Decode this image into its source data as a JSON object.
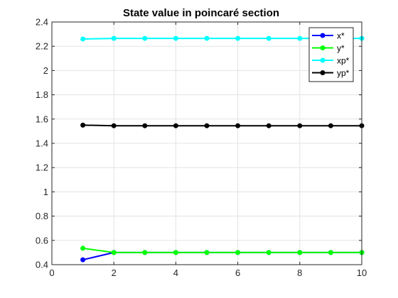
{
  "chart_data": {
    "type": "line",
    "title": "State value in poincaré section",
    "xlabel": "",
    "ylabel": "",
    "xlim": [
      0,
      10
    ],
    "ylim": [
      0.4,
      2.4
    ],
    "grid": true,
    "x_ticks": [
      "0",
      "2",
      "4",
      "6",
      "8",
      "10"
    ],
    "y_ticks": [
      "0.4",
      "0.6",
      "0.8",
      "1",
      "1.2",
      "1.4",
      "1.6",
      "1.8",
      "2",
      "2.2",
      "2.4"
    ],
    "legend_position": "top-right",
    "x": [
      1,
      2,
      3,
      4,
      5,
      6,
      7,
      8,
      9,
      10
    ],
    "series": [
      {
        "name": "x*",
        "color": "#0000ff",
        "values": [
          0.44,
          0.5,
          0.5,
          0.5,
          0.5,
          0.5,
          0.5,
          0.5,
          0.5,
          0.5
        ]
      },
      {
        "name": "y*",
        "color": "#00ff00",
        "values": [
          0.535,
          0.5,
          0.5,
          0.5,
          0.5,
          0.5,
          0.5,
          0.5,
          0.5,
          0.5
        ]
      },
      {
        "name": "xp*",
        "color": "#00ffff",
        "values": [
          2.26,
          2.265,
          2.265,
          2.265,
          2.265,
          2.265,
          2.265,
          2.265,
          2.265,
          2.265
        ]
      },
      {
        "name": "yp*",
        "color": "#000000",
        "values": [
          1.55,
          1.545,
          1.545,
          1.545,
          1.545,
          1.545,
          1.545,
          1.545,
          1.545,
          1.545
        ]
      }
    ]
  }
}
